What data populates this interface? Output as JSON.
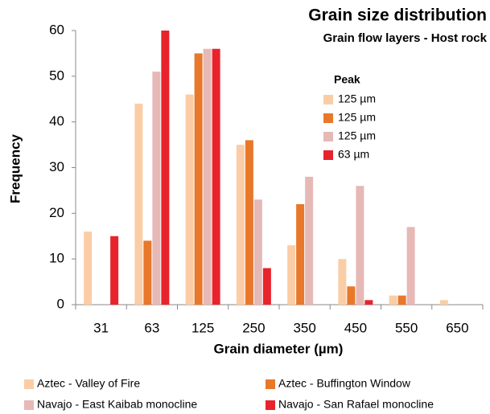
{
  "chart_data": {
    "type": "bar",
    "title": "Grain size distribution",
    "subtitle": "Grain flow layers - Host rock",
    "x_label": "Grain diameter (µm)",
    "y_label": "Frequency",
    "categories": [
      "31",
      "63",
      "125",
      "250",
      "350",
      "450",
      "550",
      "650"
    ],
    "series": [
      {
        "name": "Aztec - Valley of Fire",
        "color": "#fbcda6",
        "values": [
          16,
          44,
          46,
          35,
          13,
          10,
          2,
          1
        ]
      },
      {
        "name": "Aztec - Buffington Window",
        "color": "#e8782a",
        "values": [
          0,
          14,
          55,
          36,
          22,
          4,
          2,
          0
        ]
      },
      {
        "name": "Navajo - East Kaibab monocline",
        "color": "#e6b9b6",
        "values": [
          0,
          51,
          56,
          23,
          28,
          26,
          17,
          0
        ]
      },
      {
        "name": "Navajo - San Rafael monocline",
        "color": "#e8232b",
        "values": [
          15,
          60,
          56,
          8,
          0,
          1,
          0,
          0
        ]
      }
    ],
    "peak_legend": {
      "title": "Peak",
      "labels": [
        "125 µm",
        "125 µm",
        "125 µm",
        "63 µm"
      ]
    },
    "ylim": [
      0,
      60
    ],
    "yticks": [
      0,
      10,
      20,
      30,
      40,
      50,
      60
    ],
    "grid": false,
    "legend": "bottom"
  }
}
